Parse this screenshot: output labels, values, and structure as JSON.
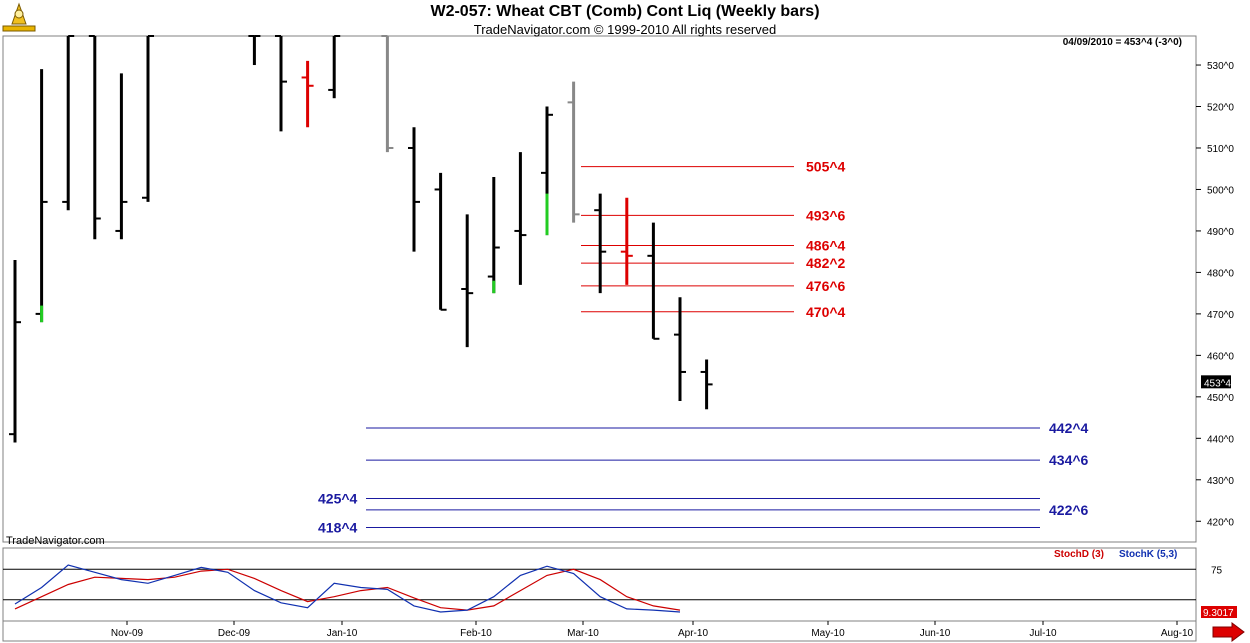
{
  "chart_data": {
    "type": "bar",
    "title": "W2-057:  Wheat CBT (Comb) Cont Liq  (Weekly bars)",
    "subtitle": "TradeNavigator.com © 1999-2010 All rights reserved",
    "readout": "04/09/2010 = 453^4 (-3^0)",
    "watermark": "TradeNavigator.com",
    "last_price_label": "453^4",
    "ylim": [
      415,
      537
    ],
    "y_ticks": [
      {
        "v": 420,
        "label": "420^0"
      },
      {
        "v": 430,
        "label": "430^0"
      },
      {
        "v": 440,
        "label": "440^0"
      },
      {
        "v": 450,
        "label": "450^0"
      },
      {
        "v": 460,
        "label": "460^0"
      },
      {
        "v": 470,
        "label": "470^0"
      },
      {
        "v": 480,
        "label": "480^0"
      },
      {
        "v": 490,
        "label": "490^0"
      },
      {
        "v": 500,
        "label": "500^0"
      },
      {
        "v": 510,
        "label": "510^0"
      },
      {
        "v": 520,
        "label": "520^0"
      },
      {
        "v": 530,
        "label": "530^0"
      }
    ],
    "x_labels": [
      "Nov-09",
      "Dec-09",
      "Jan-10",
      "Feb-10",
      "Mar-10",
      "Apr-10",
      "May-10",
      "Jun-10",
      "Jul-10",
      "Aug-10"
    ],
    "bars": [
      {
        "w": 0,
        "o": 441,
        "h": 483,
        "l": 439,
        "c": 468,
        "col": "#000000"
      },
      {
        "w": 1,
        "o": 470,
        "h": 529,
        "l": 468,
        "c": 497,
        "col": "#000000"
      },
      {
        "w": 2,
        "o": 497,
        "h": 537,
        "l": 495,
        "c": 537,
        "col": "#000000"
      },
      {
        "w": 3,
        "o": 537,
        "h": 537,
        "l": 488,
        "c": 493,
        "col": "#000000"
      },
      {
        "w": 4,
        "o": 490,
        "h": 528,
        "l": 488,
        "c": 497,
        "col": "#000000"
      },
      {
        "w": 5,
        "o": 498,
        "h": 537,
        "l": 497,
        "c": 537,
        "col": "#000000"
      },
      {
        "w": 9,
        "o": 537,
        "h": 537,
        "l": 530,
        "c": 537,
        "col": "#000000"
      },
      {
        "w": 10,
        "o": 537,
        "h": 537,
        "l": 514,
        "c": 526,
        "col": "#000000"
      },
      {
        "w": 11,
        "o": 527,
        "h": 531,
        "l": 515,
        "c": 525,
        "col": "#dd0000"
      },
      {
        "w": 12,
        "o": 524,
        "h": 537,
        "l": 522,
        "c": 537,
        "col": "#000000"
      },
      {
        "w": 14,
        "o": 537,
        "h": 537,
        "l": 509,
        "c": 510,
        "col": "#888888"
      },
      {
        "w": 15,
        "o": 510,
        "h": 515,
        "l": 485,
        "c": 497,
        "col": "#000000"
      },
      {
        "w": 16,
        "o": 500,
        "h": 504,
        "l": 471,
        "c": 471,
        "col": "#000000"
      },
      {
        "w": 17,
        "o": 476,
        "h": 494,
        "l": 462,
        "c": 475,
        "col": "#000000"
      },
      {
        "w": 18,
        "o": 479,
        "h": 503,
        "l": 475,
        "c": 486,
        "col": "#000000"
      },
      {
        "w": 19,
        "o": 490,
        "h": 509,
        "l": 477,
        "c": 489,
        "col": "#000000"
      },
      {
        "w": 20,
        "o": 504,
        "h": 520,
        "l": 489,
        "c": 518,
        "col": "#000000"
      },
      {
        "w": 21,
        "o": 521,
        "h": 526,
        "l": 492,
        "c": 494,
        "col": "#888888"
      },
      {
        "w": 22,
        "o": 495,
        "h": 499,
        "l": 475,
        "c": 485,
        "col": "#000000"
      },
      {
        "w": 23,
        "o": 485,
        "h": 498,
        "l": 477,
        "c": 484,
        "col": "#dd0000"
      },
      {
        "w": 24,
        "o": 484,
        "h": 492,
        "l": 464,
        "c": 464,
        "col": "#000000"
      },
      {
        "w": 25,
        "o": 465,
        "h": 474,
        "l": 449,
        "c": 456,
        "col": "#000000"
      },
      {
        "w": 26,
        "o": 456,
        "h": 459,
        "l": 447,
        "c": 453,
        "col": "#000000"
      }
    ],
    "resistance_levels": [
      {
        "v": 505.5,
        "label": "505^4"
      },
      {
        "v": 493.75,
        "label": "493^6"
      },
      {
        "v": 486.5,
        "label": "486^4"
      },
      {
        "v": 482.25,
        "label": "482^2"
      },
      {
        "v": 476.75,
        "label": "476^6"
      },
      {
        "v": 470.5,
        "label": "470^4"
      }
    ],
    "support_levels": [
      {
        "v": 442.5,
        "label": "442^4",
        "side": "right"
      },
      {
        "v": 434.75,
        "label": "434^6",
        "side": "right"
      },
      {
        "v": 425.5,
        "label": "425^4",
        "side": "left"
      },
      {
        "v": 422.75,
        "label": "422^6",
        "side": "right"
      },
      {
        "v": 418.5,
        "label": "418^4",
        "side": "left"
      }
    ],
    "stochastic": {
      "legend_d": "StochD (3)",
      "legend_k": "StochK (5,3)",
      "level_label": "75",
      "value_label": "9.3017",
      "k_values": [
        18,
        45,
        82,
        70,
        58,
        52,
        65,
        78,
        70,
        40,
        20,
        12,
        52,
        45,
        42,
        15,
        5,
        8,
        30,
        65,
        80,
        68,
        30,
        10,
        8,
        5
      ],
      "d_values": [
        10,
        30,
        50,
        62,
        60,
        58,
        62,
        72,
        75,
        60,
        40,
        22,
        30,
        40,
        45,
        28,
        12,
        8,
        15,
        40,
        65,
        75,
        58,
        30,
        15,
        8
      ]
    }
  },
  "colors": {
    "resistance": "#dd0000",
    "support": "#1a1aa0",
    "stochD": "#cc0000",
    "stochK": "#1030b0",
    "green_tick": "#22cc22"
  }
}
